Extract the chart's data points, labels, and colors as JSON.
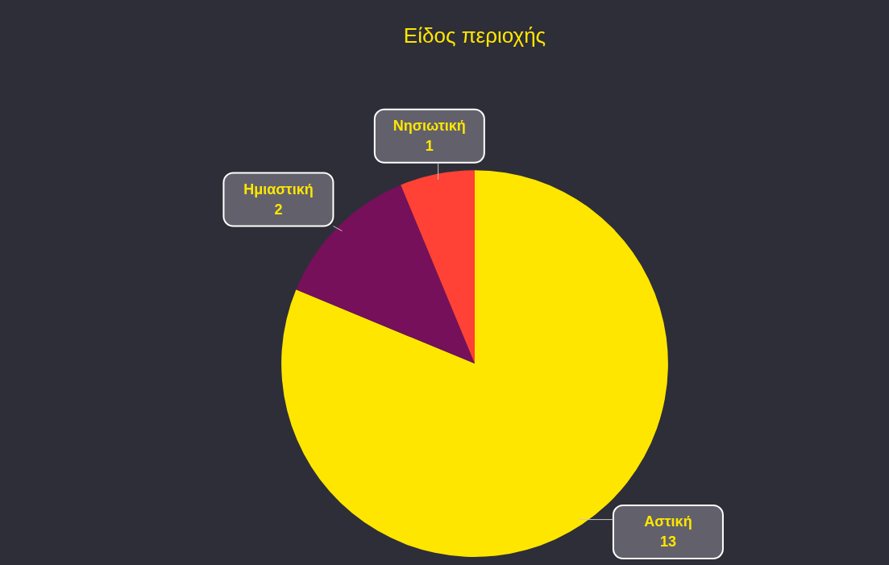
{
  "chart_data": {
    "type": "pie",
    "title": "Είδος περιοχής",
    "categories": [
      "Αστική",
      "Ημιαστική",
      "Νησιωτική"
    ],
    "values": [
      13,
      2,
      1
    ],
    "colors": [
      "#ffe600",
      "#76105a",
      "#ff4136"
    ],
    "data_labels": true,
    "legend": false
  }
}
